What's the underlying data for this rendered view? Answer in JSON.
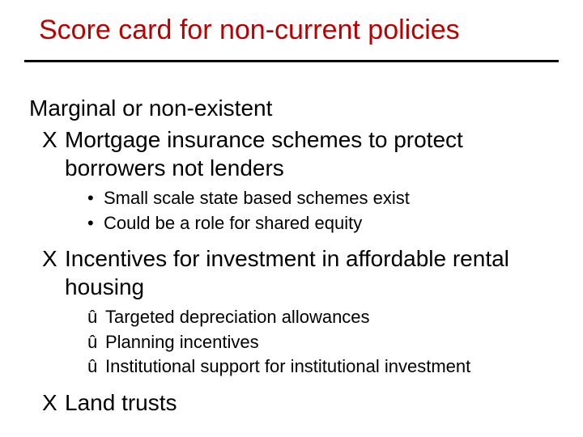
{
  "colors": {
    "title": "#bb0000",
    "rule": "#000000",
    "text": "#000000",
    "background": "#ffffff"
  },
  "typography": {
    "title_fontsize": 34,
    "h1_fontsize": 28,
    "xitem_fontsize": 28,
    "sub_fontsize": 22
  },
  "title": "Score card for non-current policies",
  "heading": "Marginal or non-existent",
  "bullets": {
    "x": "X",
    "dot": "•",
    "wx": "û"
  },
  "items": [
    {
      "text": "Mortgage insurance schemes to protect borrowers not lenders",
      "subs_dot": [
        "Small scale state based schemes exist",
        "Could be a role for shared equity"
      ]
    },
    {
      "text": "Incentives for investment in affordable rental housing",
      "subs_wx": [
        "Targeted depreciation allowances",
        "Planning incentives",
        "Institutional support for institutional investment"
      ]
    },
    {
      "text": "Land trusts"
    }
  ]
}
